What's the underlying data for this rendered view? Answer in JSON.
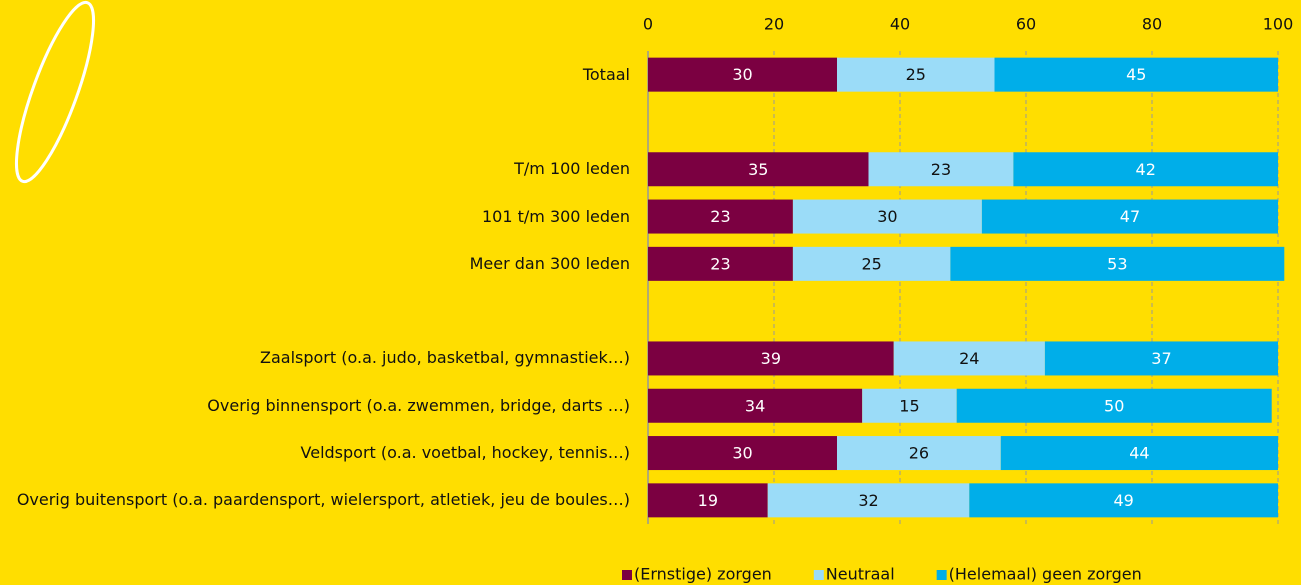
{
  "chart_data": {
    "type": "stacked_bar_horizontal",
    "categories": [
      "Totaal",
      null,
      "T/m 100 leden",
      "101 t/m 300 leden",
      "Meer dan 300 leden",
      null,
      "Zaalsport (o.a. judo, basketbal, gymnastiek…)",
      "Overig binnensport (o.a. zwemmen, bridge, darts …)",
      "Veldsport (o.a. voetbal, hockey, tennis…)",
      "Overig buitensport (o.a. paardensport, wielersport, atletiek, jeu de boules…)"
    ],
    "series": [
      {
        "name": "(Ernstige) zorgen",
        "color": "#7b0041",
        "values": [
          30,
          null,
          35,
          23,
          23,
          null,
          39,
          34,
          30,
          19
        ]
      },
      {
        "name": "Neutraal",
        "color": "#9bdcf8",
        "values": [
          25,
          null,
          23,
          30,
          25,
          null,
          24,
          15,
          26,
          32
        ]
      },
      {
        "name": "(Helemaal) geen zorgen",
        "color": "#00aee9",
        "values": [
          45,
          null,
          42,
          47,
          53,
          null,
          37,
          50,
          44,
          49
        ]
      }
    ],
    "xlim": [
      0,
      100
    ],
    "xticks": [
      0,
      20,
      40,
      60,
      80,
      100
    ],
    "grid": true
  }
}
